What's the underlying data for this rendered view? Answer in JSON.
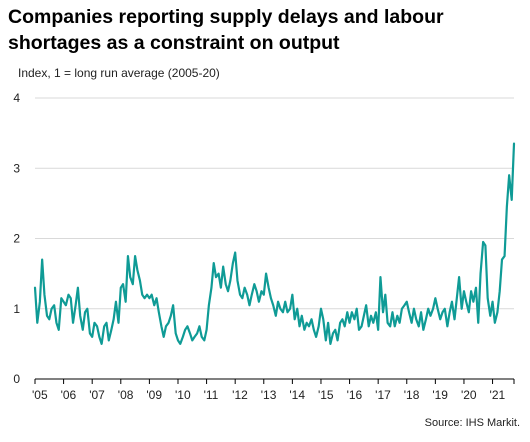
{
  "chart_data": {
    "type": "line",
    "title": "Companies reporting supply delays and labour shortages as a constraint on output",
    "subtitle": "Index, 1 = long run average (2005-20)",
    "source": "Source: IHS Markit.",
    "ylim": [
      0,
      4
    ],
    "yticks": [
      "0",
      "1",
      "2",
      "3",
      "4"
    ],
    "xlim": [
      2005,
      2021.75
    ],
    "xticks": [
      "'05",
      "'06",
      "'07",
      "'08",
      "'09",
      "'10",
      "'11",
      "'12",
      "'13",
      "'14",
      "'15",
      "'16",
      "'17",
      "'18",
      "'19",
      "'20",
      "'21"
    ],
    "grid": true,
    "line_color": "#0f9b96",
    "series": [
      {
        "x": [
          2005.0,
          2005.08,
          2005.17,
          2005.25,
          2005.33,
          2005.42,
          2005.5,
          2005.58,
          2005.67,
          2005.75,
          2005.83,
          2005.92,
          2006.0,
          2006.08,
          2006.17,
          2006.25,
          2006.33,
          2006.42,
          2006.5,
          2006.58,
          2006.67,
          2006.75,
          2006.83,
          2006.92,
          2007.0,
          2007.08,
          2007.17,
          2007.25,
          2007.33,
          2007.42,
          2007.5,
          2007.58,
          2007.67,
          2007.75,
          2007.83,
          2007.92,
          2008.0,
          2008.08,
          2008.17,
          2008.25,
          2008.33,
          2008.42,
          2008.5,
          2008.58,
          2008.67,
          2008.75,
          2008.83,
          2008.92,
          2009.0,
          2009.08,
          2009.17,
          2009.25,
          2009.33,
          2009.42,
          2009.5,
          2009.58,
          2009.67,
          2009.75,
          2009.83,
          2009.92,
          2010.0,
          2010.08,
          2010.17,
          2010.25,
          2010.33,
          2010.42,
          2010.5,
          2010.58,
          2010.67,
          2010.75,
          2010.83,
          2010.92,
          2011.0,
          2011.08,
          2011.17,
          2011.25,
          2011.33,
          2011.42,
          2011.5,
          2011.58,
          2011.67,
          2011.75,
          2011.83,
          2011.92,
          2012.0,
          2012.08,
          2012.17,
          2012.25,
          2012.33,
          2012.42,
          2012.5,
          2012.58,
          2012.67,
          2012.75,
          2012.83,
          2012.92,
          2013.0,
          2013.08,
          2013.17,
          2013.25,
          2013.33,
          2013.42,
          2013.5,
          2013.58,
          2013.67,
          2013.75,
          2013.83,
          2013.92,
          2014.0,
          2014.08,
          2014.17,
          2014.25,
          2014.33,
          2014.42,
          2014.5,
          2014.58,
          2014.67,
          2014.75,
          2014.83,
          2014.92,
          2015.0,
          2015.08,
          2015.17,
          2015.25,
          2015.33,
          2015.42,
          2015.5,
          2015.58,
          2015.67,
          2015.75,
          2015.83,
          2015.92,
          2016.0,
          2016.08,
          2016.17,
          2016.25,
          2016.33,
          2016.42,
          2016.5,
          2016.58,
          2016.67,
          2016.75,
          2016.83,
          2016.92,
          2017.0,
          2017.08,
          2017.17,
          2017.25,
          2017.33,
          2017.42,
          2017.5,
          2017.58,
          2017.67,
          2017.75,
          2017.83,
          2017.92,
          2018.0,
          2018.08,
          2018.17,
          2018.25,
          2018.33,
          2018.42,
          2018.5,
          2018.58,
          2018.67,
          2018.75,
          2018.83,
          2018.92,
          2019.0,
          2019.08,
          2019.17,
          2019.25,
          2019.33,
          2019.42,
          2019.5,
          2019.58,
          2019.67,
          2019.75,
          2019.83,
          2019.92,
          2020.0,
          2020.08,
          2020.17,
          2020.25,
          2020.33,
          2020.42,
          2020.5,
          2020.58,
          2020.67,
          2020.75,
          2020.83,
          2020.92,
          2021.0,
          2021.08,
          2021.17,
          2021.25,
          2021.33,
          2021.42,
          2021.5,
          2021.58,
          2021.67,
          2021.75
        ],
        "values": [
          1.3,
          0.8,
          1.1,
          1.7,
          1.2,
          0.9,
          0.85,
          1.0,
          1.05,
          0.8,
          0.7,
          1.15,
          1.1,
          1.05,
          1.2,
          1.15,
          0.8,
          1.05,
          1.3,
          0.9,
          0.7,
          0.95,
          1.0,
          0.65,
          0.6,
          0.8,
          0.75,
          0.6,
          0.5,
          0.75,
          0.8,
          0.55,
          0.7,
          0.85,
          1.1,
          0.8,
          1.3,
          1.35,
          1.1,
          1.75,
          1.45,
          1.35,
          1.75,
          1.55,
          1.4,
          1.2,
          1.15,
          1.2,
          1.15,
          1.2,
          1.05,
          1.15,
          0.95,
          0.75,
          0.6,
          0.75,
          0.8,
          0.9,
          1.05,
          0.65,
          0.55,
          0.5,
          0.6,
          0.7,
          0.75,
          0.65,
          0.55,
          0.6,
          0.65,
          0.75,
          0.6,
          0.55,
          0.7,
          1.05,
          1.3,
          1.65,
          1.45,
          1.5,
          1.3,
          1.6,
          1.35,
          1.25,
          1.4,
          1.65,
          1.8,
          1.4,
          1.2,
          1.15,
          1.3,
          1.2,
          1.05,
          1.2,
          1.35,
          1.25,
          1.1,
          1.25,
          1.2,
          1.5,
          1.3,
          1.15,
          1.05,
          0.9,
          1.1,
          1.0,
          0.95,
          1.1,
          0.95,
          1.0,
          1.2,
          0.85,
          1.0,
          0.75,
          0.9,
          0.7,
          0.8,
          0.75,
          0.85,
          0.7,
          0.6,
          0.75,
          1.0,
          0.85,
          0.55,
          0.8,
          0.5,
          0.65,
          0.7,
          0.55,
          0.8,
          0.85,
          0.75,
          0.95,
          0.8,
          0.95,
          0.85,
          1.0,
          0.7,
          0.75,
          0.9,
          1.05,
          0.75,
          0.9,
          0.8,
          0.95,
          0.7,
          1.45,
          0.95,
          1.2,
          0.8,
          0.75,
          0.95,
          0.75,
          0.9,
          0.8,
          1.0,
          1.05,
          1.1,
          0.95,
          0.8,
          1.0,
          0.85,
          0.75,
          0.95,
          0.7,
          0.85,
          1.0,
          0.9,
          1.0,
          1.15,
          1.0,
          0.85,
          0.95,
          1.0,
          0.75,
          0.95,
          1.1,
          0.85,
          1.15,
          1.45,
          1.0,
          1.25,
          1.1,
          0.95,
          1.25,
          1.1,
          1.3,
          0.8,
          1.5,
          1.95,
          1.9,
          1.15,
          0.9,
          1.1,
          0.8,
          0.95,
          1.25,
          1.7,
          1.75,
          2.45,
          2.9,
          2.55,
          3.35
        ]
      }
    ]
  }
}
